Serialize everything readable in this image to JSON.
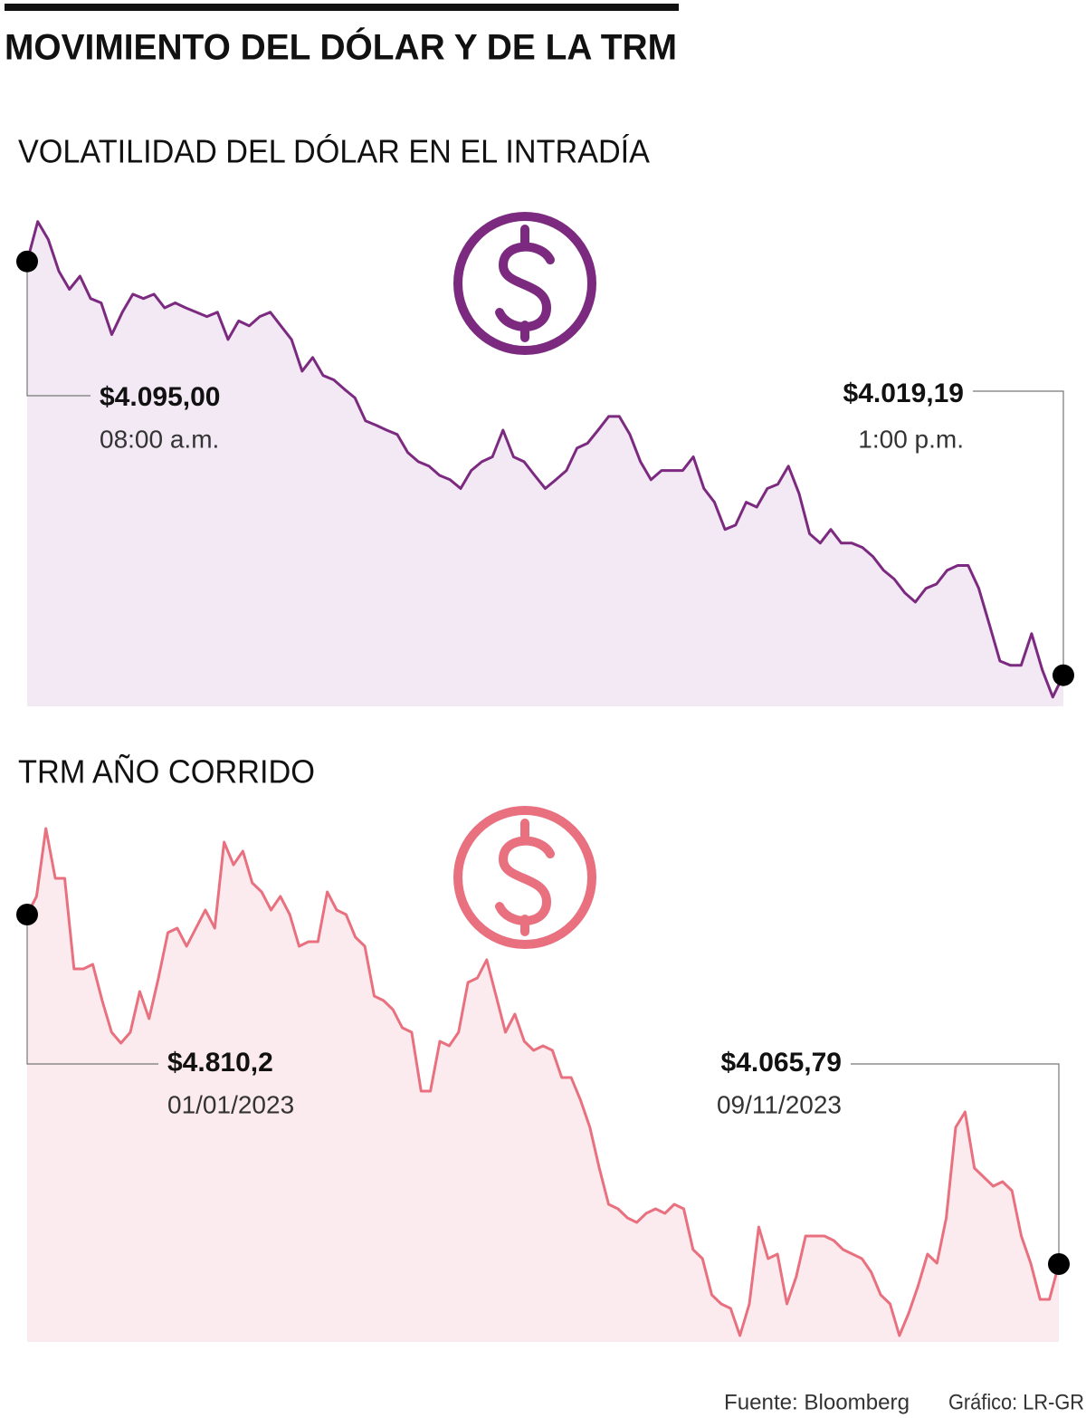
{
  "title": "MOVIMIENTO DEL DÓLAR Y DE LA TRM",
  "source": "Fuente: Bloomberg",
  "credit": "Gráfico: LR-GR",
  "chart_data": [
    {
      "type": "area",
      "title": "VOLATILIDAD DEL DÓLAR EN EL INTRADÍA",
      "color": "#7b2a80",
      "area_color": "#f2e9f5",
      "ylim": [
        4013.5,
        4103
      ],
      "categories": [
        "08:00 a.m.",
        null,
        null,
        null,
        null,
        null,
        null,
        null,
        null,
        null,
        null,
        null,
        null,
        null,
        null,
        null,
        null,
        null,
        null,
        null,
        null,
        null,
        null,
        null,
        null,
        null,
        null,
        null,
        null,
        null,
        null,
        null,
        null,
        null,
        null,
        null,
        null,
        null,
        null,
        null,
        null,
        null,
        null,
        null,
        null,
        null,
        null,
        null,
        null,
        null,
        null,
        null,
        null,
        null,
        null,
        null,
        null,
        null,
        null,
        null,
        null,
        null,
        null,
        null,
        null,
        null,
        null,
        null,
        null,
        null,
        null,
        null,
        null,
        null,
        null,
        null,
        null,
        null,
        null,
        null,
        null,
        null,
        null,
        null,
        null,
        null,
        null,
        null,
        null,
        null,
        null,
        null,
        null,
        null,
        null,
        null,
        null,
        null,
        "1:00 p.m."
      ],
      "values": [
        4095,
        4102.3,
        4099.0,
        4093.2,
        4089.9,
        4092.3,
        4088.2,
        4087.4,
        4081.6,
        4085.7,
        4089.0,
        4088.2,
        4089.0,
        4086.5,
        4087.4,
        4086.5,
        4085.7,
        4084.9,
        4085.7,
        4080.7,
        4084.1,
        4083.2,
        4084.9,
        4085.7,
        4083.2,
        4080.7,
        4074.9,
        4077.4,
        4074.1,
        4073.3,
        4071.6,
        4070.0,
        4065.8,
        4065.0,
        4064.1,
        4063.3,
        4060.0,
        4058.3,
        4057.5,
        4055.8,
        4055.0,
        4053.4,
        4056.7,
        4058.3,
        4059.2,
        4064.1,
        4059.2,
        4058.3,
        4055.8,
        4053.4,
        4055.0,
        4056.7,
        4060.8,
        4061.7,
        4064.1,
        4066.6,
        4066.6,
        4063.3,
        4058.3,
        4055.0,
        4056.7,
        4056.7,
        4056.7,
        4059.2,
        4053.4,
        4050.9,
        4045.9,
        4046.7,
        4050.9,
        4050.0,
        4053.4,
        4054.2,
        4057.5,
        4052.5,
        4045.1,
        4043.4,
        4045.9,
        4043.4,
        4043.4,
        4042.6,
        4040.9,
        4038.4,
        4036.8,
        4034.3,
        4032.6,
        4035.1,
        4035.9,
        4038.4,
        4039.3,
        4039.3,
        4035.1,
        4028.5,
        4021.8,
        4021.0,
        4021.0,
        4026.8,
        4020.2,
        4015.2,
        4019.19
      ],
      "value_labels": [
        "$4.095,00",
        null,
        null,
        null,
        null,
        null,
        null,
        null,
        null,
        null,
        null,
        null,
        null,
        null,
        null,
        null,
        null,
        null,
        null,
        null,
        null,
        null,
        null,
        null,
        null,
        null,
        null,
        null,
        null,
        null,
        null,
        null,
        null,
        null,
        null,
        null,
        null,
        null,
        null,
        null,
        null,
        null,
        null,
        null,
        null,
        null,
        null,
        null,
        null,
        null,
        null,
        null,
        null,
        null,
        null,
        null,
        null,
        null,
        null,
        null,
        null,
        null,
        null,
        null,
        null,
        null,
        null,
        null,
        null,
        null,
        null,
        null,
        null,
        null,
        null,
        null,
        null,
        null,
        null,
        null,
        null,
        null,
        null,
        null,
        null,
        null,
        null,
        null,
        null,
        null,
        null,
        null,
        null,
        null,
        null,
        null,
        null,
        null,
        "$4.019,19"
      ]
    },
    {
      "type": "area",
      "title": "TRM AÑO CORRIDO",
      "color": "#e8707f",
      "area_color": "#fcebee",
      "ylim": [
        3899.9,
        4993.4
      ],
      "categories": [
        "01/01/2023",
        null,
        null,
        null,
        null,
        null,
        null,
        null,
        null,
        null,
        null,
        null,
        null,
        null,
        null,
        null,
        null,
        null,
        null,
        null,
        null,
        null,
        null,
        null,
        null,
        null,
        null,
        null,
        null,
        null,
        null,
        null,
        null,
        null,
        null,
        null,
        null,
        null,
        null,
        null,
        null,
        null,
        null,
        null,
        null,
        null,
        null,
        null,
        null,
        null,
        null,
        null,
        null,
        null,
        null,
        null,
        null,
        null,
        null,
        null,
        null,
        null,
        null,
        null,
        null,
        null,
        null,
        null,
        null,
        null,
        null,
        null,
        null,
        null,
        null,
        null,
        null,
        null,
        null,
        null,
        null,
        null,
        null,
        null,
        null,
        null,
        null,
        null,
        null,
        null,
        null,
        null,
        null,
        null,
        null,
        null,
        null,
        null,
        null,
        null,
        null,
        null,
        null,
        null,
        null,
        null,
        null,
        null,
        null,
        null,
        "09/11/2023"
      ],
      "values": [
        4810.2,
        4848.8,
        4993.4,
        4887.3,
        4887.3,
        4694.5,
        4694.5,
        4704.1,
        4627.0,
        4559.5,
        4536.4,
        4559.5,
        4646.3,
        4588.4,
        4675.2,
        4771.6,
        4781.3,
        4742.7,
        4781.3,
        4819.8,
        4781.3,
        4964.5,
        4916.3,
        4945.2,
        4877.7,
        4858.4,
        4819.8,
        4848.8,
        4810.2,
        4742.7,
        4752.3,
        4752.3,
        4858.4,
        4819.8,
        4810.2,
        4762.0,
        4742.7,
        4636.6,
        4627.0,
        4607.7,
        4569.1,
        4559.5,
        4434.1,
        4434.1,
        4540.2,
        4530.6,
        4559.5,
        4665.6,
        4675.2,
        4713.8,
        4636.6,
        4559.5,
        4598.1,
        4540.2,
        4520.9,
        4530.6,
        4520.9,
        4463.1,
        4463.1,
        4414.9,
        4357.0,
        4270.2,
        4193.1,
        4183.4,
        4164.2,
        4154.5,
        4173.8,
        4183.4,
        4173.8,
        4193.1,
        4183.4,
        4096.7,
        4077.4,
        4000.2,
        3980.9,
        3971.3,
        3913.4,
        3980.9,
        4144.9,
        4077.4,
        4087.0,
        3980.9,
        4038.8,
        4125.6,
        4125.6,
        4125.6,
        4115.9,
        4096.7,
        4087.0,
        4077.4,
        4048.4,
        4000.2,
        3980.9,
        3913.4,
        3961.7,
        4019.5,
        4087.0,
        4067.7,
        4164.2,
        4357.0,
        4389.8,
        4270.2,
        4250.9,
        4231.6,
        4241.3,
        4222.0,
        4125.6,
        4067.7,
        3990.6,
        3990.6,
        4065.79
      ],
      "value_labels": [
        "$4.810,2",
        null,
        null,
        null,
        null,
        null,
        null,
        null,
        null,
        null,
        null,
        null,
        null,
        null,
        null,
        null,
        null,
        null,
        null,
        null,
        null,
        null,
        null,
        null,
        null,
        null,
        null,
        null,
        null,
        null,
        null,
        null,
        null,
        null,
        null,
        null,
        null,
        null,
        null,
        null,
        null,
        null,
        null,
        null,
        null,
        null,
        null,
        null,
        null,
        null,
        null,
        null,
        null,
        null,
        null,
        null,
        null,
        null,
        null,
        null,
        null,
        null,
        null,
        null,
        null,
        null,
        null,
        null,
        null,
        null,
        null,
        null,
        null,
        null,
        null,
        null,
        null,
        null,
        null,
        null,
        null,
        null,
        null,
        null,
        null,
        null,
        null,
        null,
        null,
        null,
        null,
        null,
        null,
        null,
        null,
        null,
        null,
        null,
        null,
        null,
        null,
        null,
        null,
        null,
        null,
        null,
        null,
        null,
        null,
        null,
        "$4.065,79"
      ]
    }
  ]
}
